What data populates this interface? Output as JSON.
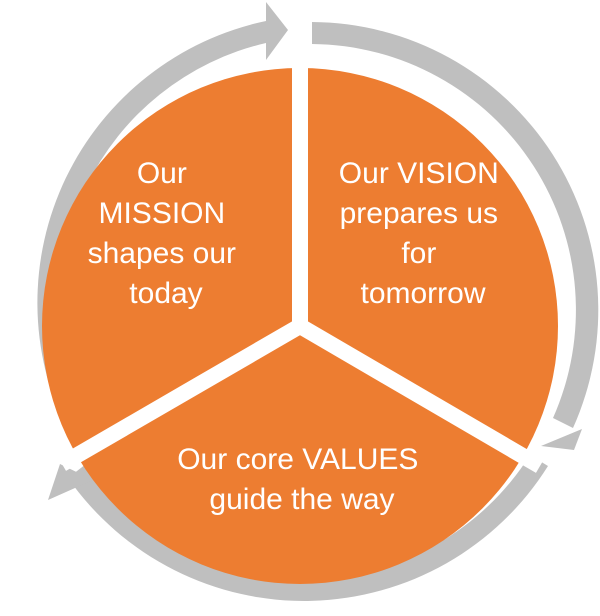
{
  "colors": {
    "segment_fill": "#ED7D31",
    "divider": "#FFFFFF",
    "arrow_ring": "#BFBFBF",
    "label_text": "#FFFFFF"
  },
  "segments": [
    {
      "key": "mission",
      "lines": [
        "Our",
        "MISSION",
        "shapes our",
        "today"
      ]
    },
    {
      "key": "vision",
      "lines": [
        "Our VISION",
        "prepares us",
        "for",
        "tomorrow"
      ]
    },
    {
      "key": "values",
      "lines": [
        "Our core VALUES",
        "guide the way"
      ]
    }
  ]
}
